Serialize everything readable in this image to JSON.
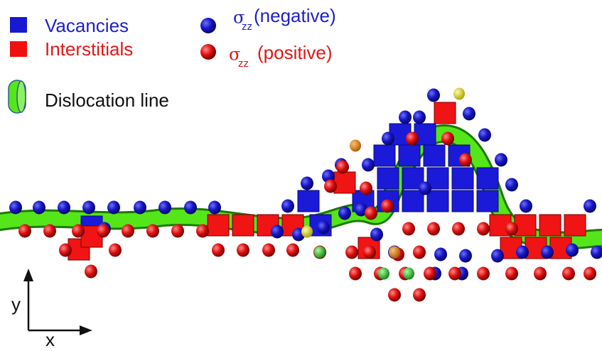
{
  "legend": {
    "vacancies": "Vacancies",
    "interstitials": "Interstitials",
    "negative": {
      "symbol": "σ",
      "subscript": "zz",
      "text": "(negative)"
    },
    "positive": {
      "symbol": "σ",
      "subscript": "zz",
      "text": "(positive)"
    },
    "dislocation": "Dislocation line"
  },
  "axes": {
    "y": "y",
    "x": "x"
  }
}
